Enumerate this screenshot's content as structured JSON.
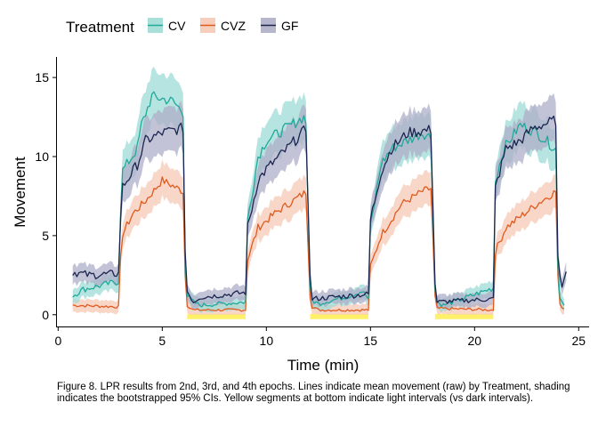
{
  "caption": "Figure 8. LPR results from 2nd, 3rd, and 4th epochs. Lines indicate mean movement (raw) by Treatment, shading indicates the bootstrapped 95% CIs. Yellow segments at bottom indicate light intervals (vs dark intervals).",
  "chart_data": {
    "type": "line",
    "title": "",
    "xlabel": "Time (min)",
    "ylabel": "Movement",
    "xlim": [
      -0.1,
      25.5
    ],
    "ylim": [
      -0.8,
      16.3
    ],
    "xticks": [
      0,
      5,
      10,
      15,
      20,
      25
    ],
    "yticks": [
      0,
      5,
      10,
      15
    ],
    "grid": false,
    "legend": {
      "title": "Treatment",
      "position": "top-left",
      "entries": [
        "CV",
        "CVZ",
        "GF"
      ]
    },
    "light_intervals": [
      [
        6.2,
        9.0
      ],
      [
        12.1,
        14.9
      ],
      [
        18.1,
        20.9
      ]
    ],
    "light_color": "#fff06a",
    "series": [
      {
        "name": "CV",
        "color": "#1fa99a",
        "fill": "#9edbd5",
        "noise": 0.35,
        "knots": [
          [
            0.7,
            1.2
          ],
          [
            1.2,
            1.6
          ],
          [
            2.9,
            2.1
          ],
          [
            3.05,
            9.0
          ],
          [
            3.8,
            10.5
          ],
          [
            4.0,
            12.0
          ],
          [
            4.5,
            13.8
          ],
          [
            5.5,
            13.5
          ],
          [
            6.0,
            12.8
          ],
          [
            6.1,
            3.5
          ],
          [
            6.2,
            1.2
          ],
          [
            6.5,
            0.8
          ],
          [
            6.8,
            0.6
          ],
          [
            9.0,
            0.8
          ],
          [
            9.1,
            6.0
          ],
          [
            9.6,
            10.0
          ],
          [
            10.0,
            11.0
          ],
          [
            11.8,
            12.5
          ],
          [
            11.95,
            12.0
          ],
          [
            12.05,
            2.0
          ],
          [
            12.2,
            0.9
          ],
          [
            12.5,
            0.7
          ],
          [
            14.0,
            1.2
          ],
          [
            14.6,
            1.5
          ],
          [
            14.9,
            1.0
          ],
          [
            15.0,
            5.5
          ],
          [
            15.5,
            9.5
          ],
          [
            16.0,
            10.5
          ],
          [
            17.5,
            11.5
          ],
          [
            17.95,
            11.2
          ],
          [
            18.05,
            2.0
          ],
          [
            18.2,
            0.8
          ],
          [
            18.5,
            0.6
          ],
          [
            19.2,
            0.9
          ],
          [
            20.5,
            1.5
          ],
          [
            20.9,
            1.7
          ],
          [
            21.0,
            8.5
          ],
          [
            21.4,
            10.5
          ],
          [
            22.2,
            12.0
          ],
          [
            23.0,
            11.5
          ],
          [
            23.9,
            10.5
          ],
          [
            24.0,
            3.0
          ],
          [
            24.1,
            1.2
          ],
          [
            24.3,
            0.6
          ]
        ]
      },
      {
        "name": "CVZ",
        "color": "#e05a1e",
        "fill": "#f6c9b5",
        "noise": 0.25,
        "knots": [
          [
            0.7,
            0.6
          ],
          [
            2.9,
            0.5
          ],
          [
            3.05,
            5.0
          ],
          [
            3.6,
            6.4
          ],
          [
            4.2,
            7.2
          ],
          [
            5.0,
            8.5
          ],
          [
            6.0,
            7.8
          ],
          [
            6.1,
            2.5
          ],
          [
            6.2,
            0.6
          ],
          [
            6.5,
            0.3
          ],
          [
            9.0,
            0.3
          ],
          [
            9.1,
            3.5
          ],
          [
            9.6,
            5.5
          ],
          [
            10.5,
            6.5
          ],
          [
            11.95,
            7.8
          ],
          [
            12.05,
            1.5
          ],
          [
            12.2,
            0.5
          ],
          [
            12.5,
            0.3
          ],
          [
            14.9,
            0.3
          ],
          [
            15.0,
            3.0
          ],
          [
            15.5,
            5.0
          ],
          [
            16.5,
            7.0
          ],
          [
            17.5,
            7.8
          ],
          [
            17.95,
            8.0
          ],
          [
            18.05,
            1.5
          ],
          [
            18.2,
            0.4
          ],
          [
            20.9,
            0.3
          ],
          [
            21.0,
            4.0
          ],
          [
            21.5,
            5.5
          ],
          [
            23.0,
            7.0
          ],
          [
            23.9,
            7.8
          ],
          [
            24.0,
            2.5
          ],
          [
            24.1,
            0.6
          ],
          [
            24.3,
            0.4
          ]
        ]
      },
      {
        "name": "GF",
        "color": "#1c2550",
        "fill": "#aeafc8",
        "noise": 0.35,
        "knots": [
          [
            0.7,
            2.7
          ],
          [
            1.5,
            2.5
          ],
          [
            2.9,
            2.6
          ],
          [
            3.05,
            8.0
          ],
          [
            3.8,
            9.5
          ],
          [
            4.2,
            11.0
          ],
          [
            5.0,
            11.5
          ],
          [
            6.0,
            11.8
          ],
          [
            6.1,
            4.0
          ],
          [
            6.2,
            1.5
          ],
          [
            6.5,
            0.8
          ],
          [
            6.8,
            1.1
          ],
          [
            9.0,
            1.4
          ],
          [
            9.1,
            5.5
          ],
          [
            9.6,
            8.5
          ],
          [
            10.0,
            9.2
          ],
          [
            11.0,
            10.5
          ],
          [
            11.95,
            11.8
          ],
          [
            12.05,
            3.0
          ],
          [
            12.2,
            1.0
          ],
          [
            14.9,
            1.3
          ],
          [
            15.0,
            6.0
          ],
          [
            15.5,
            9.0
          ],
          [
            16.0,
            10.5
          ],
          [
            16.8,
            11.5
          ],
          [
            17.95,
            11.7
          ],
          [
            18.05,
            2.5
          ],
          [
            18.2,
            0.8
          ],
          [
            20.9,
            1.0
          ],
          [
            21.0,
            8.0
          ],
          [
            21.5,
            10.5
          ],
          [
            22.2,
            11.0
          ],
          [
            22.8,
            11.8
          ],
          [
            23.9,
            12.3
          ],
          [
            24.0,
            3.5
          ],
          [
            24.15,
            1.6
          ],
          [
            24.4,
            3.0
          ]
        ]
      }
    ]
  }
}
